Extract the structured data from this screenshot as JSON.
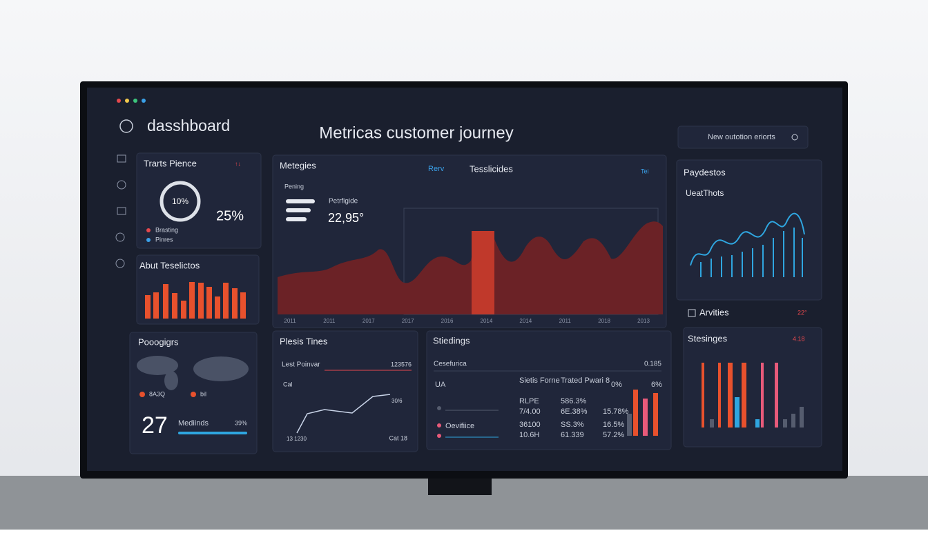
{
  "header": {
    "brand": "dasshboard",
    "title": "Metricas customer journey",
    "search": "New outotion eriorts"
  },
  "traffic": {
    "title": "Trarts Pience",
    "badge": "↑↓",
    "donut_label": "10%",
    "value": "25%",
    "legend": [
      "Brasting",
      "Pinres"
    ]
  },
  "activity": {
    "title": "Abut Teselictos"
  },
  "programs": {
    "title": "Pooogigrs",
    "legend": [
      "8A3Q",
      "bil"
    ],
    "count": "27",
    "metric": "Mediinds",
    "percent": "39%"
  },
  "metrics": {
    "title": "Metegies",
    "tabs": [
      "Rerv",
      "Tesslicides"
    ],
    "filter": "Tei",
    "caption": "Pening",
    "stat_label": "Petrfigide",
    "stat_value": "22,95°",
    "x_labels": [
      "2011",
      "2011",
      "2017",
      "2017",
      "2016",
      "2014",
      "2014",
      "2011",
      "2018",
      "2013"
    ]
  },
  "payments": {
    "title": "Paydestos",
    "subtitle": "UeatThots"
  },
  "activities": {
    "title": "Arvities",
    "badge": "22°"
  },
  "settings": {
    "title": "Stesinges",
    "badge": "4.18"
  },
  "pulse": {
    "title": "Plesis Tines",
    "row_label": "Lest Poinvar",
    "row_value": "123576",
    "axis_label": "Cal",
    "end_label": "30/6",
    "start_label": "13 1230",
    "end_axis": "Cat 18"
  },
  "standings": {
    "title": "Stiedings",
    "caption": "Cesefurica",
    "caption_value": "0.185",
    "headers": [
      "UA",
      "Sietis Forne",
      "Trated Pwari 8",
      "0%",
      "6%"
    ],
    "rows": [
      {
        "a": "RLPE",
        "b": "586.3%"
      },
      {
        "a": "7/4.00",
        "b": "6E.38%",
        "c": "15.78%"
      },
      {
        "name": "Oevifiice",
        "a": "36100",
        "b": "SS.3%",
        "c": "16.5%"
      },
      {
        "a": "10.6H",
        "b": "61.339",
        "c": "57.2%"
      }
    ]
  }
}
